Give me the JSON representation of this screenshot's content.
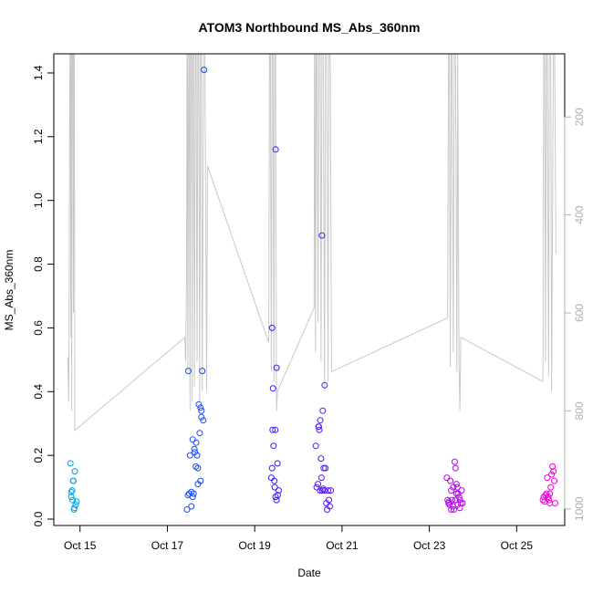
{
  "chart_data": {
    "type": "scatter",
    "title": "ATOM3 Northbound MS_Abs_360nm",
    "xlabel": "Date",
    "ylabel": "MS_Abs_360nm",
    "x_ticks": [
      "Oct 15",
      "Oct 17",
      "Oct 19",
      "Oct 21",
      "Oct 23",
      "Oct 25"
    ],
    "x_tick_days": [
      15,
      17,
      19,
      21,
      23,
      25
    ],
    "xlim": [
      14.4,
      26.1
    ],
    "ylim": [
      -0.02,
      1.46
    ],
    "y_ticks": [
      0.0,
      0.2,
      0.4,
      0.6,
      0.8,
      1.0,
      1.2,
      1.4
    ],
    "y2_ticks": [
      200,
      400,
      600,
      800,
      1000
    ],
    "y2lim": [
      1034,
      71
    ],
    "grid": false,
    "points": [
      {
        "x": 14.78,
        "y": 0.175
      },
      {
        "x": 14.82,
        "y": 0.09
      },
      {
        "x": 14.85,
        "y": 0.12
      },
      {
        "x": 14.8,
        "y": 0.07
      },
      {
        "x": 14.88,
        "y": 0.15
      },
      {
        "x": 14.83,
        "y": 0.06
      },
      {
        "x": 14.9,
        "y": 0.045
      },
      {
        "x": 14.87,
        "y": 0.035
      },
      {
        "x": 14.92,
        "y": 0.055
      },
      {
        "x": 14.8,
        "y": 0.085
      },
      {
        "x": 14.86,
        "y": 0.03
      },
      {
        "x": 14.84,
        "y": 0.12
      },
      {
        "x": 17.45,
        "y": 0.03
      },
      {
        "x": 17.48,
        "y": 0.465
      },
      {
        "x": 17.5,
        "y": 0.08
      },
      {
        "x": 17.52,
        "y": 0.2
      },
      {
        "x": 17.55,
        "y": 0.085
      },
      {
        "x": 17.55,
        "y": 0.04
      },
      {
        "x": 17.58,
        "y": 0.25
      },
      {
        "x": 17.6,
        "y": 0.08
      },
      {
        "x": 17.62,
        "y": 0.22
      },
      {
        "x": 17.63,
        "y": 0.21
      },
      {
        "x": 17.65,
        "y": 0.165
      },
      {
        "x": 17.66,
        "y": 0.24
      },
      {
        "x": 17.68,
        "y": 0.2
      },
      {
        "x": 17.7,
        "y": 0.11
      },
      {
        "x": 17.7,
        "y": 0.16
      },
      {
        "x": 17.72,
        "y": 0.36
      },
      {
        "x": 17.74,
        "y": 0.27
      },
      {
        "x": 17.76,
        "y": 0.35
      },
      {
        "x": 17.76,
        "y": 0.12
      },
      {
        "x": 17.78,
        "y": 0.34
      },
      {
        "x": 17.78,
        "y": 0.32
      },
      {
        "x": 17.8,
        "y": 0.465
      },
      {
        "x": 17.82,
        "y": 0.31
      },
      {
        "x": 17.84,
        "y": 1.41
      },
      {
        "x": 17.47,
        "y": 0.075
      },
      {
        "x": 17.58,
        "y": 0.07
      },
      {
        "x": 19.4,
        "y": 0.6
      },
      {
        "x": 19.42,
        "y": 0.41
      },
      {
        "x": 19.38,
        "y": 0.13
      },
      {
        "x": 19.41,
        "y": 0.28
      },
      {
        "x": 19.43,
        "y": 0.23
      },
      {
        "x": 19.45,
        "y": 0.12
      },
      {
        "x": 19.47,
        "y": 0.28
      },
      {
        "x": 19.48,
        "y": 1.16
      },
      {
        "x": 19.5,
        "y": 0.475
      },
      {
        "x": 19.46,
        "y": 0.1
      },
      {
        "x": 19.48,
        "y": 0.07
      },
      {
        "x": 19.5,
        "y": 0.06
      },
      {
        "x": 19.52,
        "y": 0.175
      },
      {
        "x": 19.55,
        "y": 0.09
      },
      {
        "x": 19.53,
        "y": 0.075
      },
      {
        "x": 19.4,
        "y": 0.16
      },
      {
        "x": 20.4,
        "y": 0.23
      },
      {
        "x": 20.42,
        "y": 0.1
      },
      {
        "x": 20.45,
        "y": 0.11
      },
      {
        "x": 20.47,
        "y": 0.29
      },
      {
        "x": 20.48,
        "y": 0.28
      },
      {
        "x": 20.5,
        "y": 0.31
      },
      {
        "x": 20.52,
        "y": 0.19
      },
      {
        "x": 20.54,
        "y": 0.89
      },
      {
        "x": 20.55,
        "y": 0.09
      },
      {
        "x": 20.56,
        "y": 0.34
      },
      {
        "x": 20.58,
        "y": 0.16
      },
      {
        "x": 20.6,
        "y": 0.09
      },
      {
        "x": 20.6,
        "y": 0.42
      },
      {
        "x": 20.62,
        "y": 0.16
      },
      {
        "x": 20.64,
        "y": 0.05
      },
      {
        "x": 20.66,
        "y": 0.03
      },
      {
        "x": 20.68,
        "y": 0.09
      },
      {
        "x": 20.7,
        "y": 0.06
      },
      {
        "x": 20.72,
        "y": 0.04
      },
      {
        "x": 20.74,
        "y": 0.09
      },
      {
        "x": 20.5,
        "y": 0.09
      },
      {
        "x": 20.53,
        "y": 0.13
      },
      {
        "x": 20.57,
        "y": 0.095
      },
      {
        "x": 20.46,
        "y": 0.29
      },
      {
        "x": 23.4,
        "y": 0.13
      },
      {
        "x": 23.42,
        "y": 0.06
      },
      {
        "x": 23.44,
        "y": 0.05
      },
      {
        "x": 23.46,
        "y": 0.045
      },
      {
        "x": 23.48,
        "y": 0.12
      },
      {
        "x": 23.5,
        "y": 0.09
      },
      {
        "x": 23.52,
        "y": 0.06
      },
      {
        "x": 23.54,
        "y": 0.04
      },
      {
        "x": 23.56,
        "y": 0.03
      },
      {
        "x": 23.58,
        "y": 0.18
      },
      {
        "x": 23.6,
        "y": 0.16
      },
      {
        "x": 23.62,
        "y": 0.11
      },
      {
        "x": 23.64,
        "y": 0.1
      },
      {
        "x": 23.66,
        "y": 0.08
      },
      {
        "x": 23.68,
        "y": 0.07
      },
      {
        "x": 23.7,
        "y": 0.06
      },
      {
        "x": 23.72,
        "y": 0.05
      },
      {
        "x": 23.74,
        "y": 0.09
      },
      {
        "x": 23.76,
        "y": 0.05
      },
      {
        "x": 23.5,
        "y": 0.03
      },
      {
        "x": 23.55,
        "y": 0.1
      },
      {
        "x": 23.6,
        "y": 0.06
      },
      {
        "x": 23.65,
        "y": 0.045
      },
      {
        "x": 23.45,
        "y": 0.055
      },
      {
        "x": 23.7,
        "y": 0.035
      },
      {
        "x": 23.62,
        "y": 0.08
      },
      {
        "x": 25.6,
        "y": 0.06
      },
      {
        "x": 25.62,
        "y": 0.07
      },
      {
        "x": 25.64,
        "y": 0.055
      },
      {
        "x": 25.66,
        "y": 0.075
      },
      {
        "x": 25.68,
        "y": 0.08
      },
      {
        "x": 25.7,
        "y": 0.13
      },
      {
        "x": 25.72,
        "y": 0.07
      },
      {
        "x": 25.74,
        "y": 0.06
      },
      {
        "x": 25.76,
        "y": 0.05
      },
      {
        "x": 25.78,
        "y": 0.1
      },
      {
        "x": 25.8,
        "y": 0.14
      },
      {
        "x": 25.82,
        "y": 0.165
      },
      {
        "x": 25.84,
        "y": 0.15
      },
      {
        "x": 25.86,
        "y": 0.12
      },
      {
        "x": 25.88,
        "y": 0.05
      },
      {
        "x": 25.72,
        "y": 0.07
      },
      {
        "x": 25.76,
        "y": 0.08
      }
    ],
    "point_colors": {
      "start": "#00a6e8",
      "mid": "#2222ff",
      "end": "#ff00d8"
    },
    "altitude_line_color": "#c8c8c8",
    "altitude_series": [
      [
        14.72,
        690
      ],
      [
        14.74,
        780
      ],
      [
        14.75,
        600
      ],
      [
        14.76,
        300
      ],
      [
        14.77,
        71
      ],
      [
        14.78,
        71
      ],
      [
        14.79,
        650
      ],
      [
        14.8,
        71
      ],
      [
        14.81,
        800
      ],
      [
        14.82,
        71
      ],
      [
        14.84,
        71
      ],
      [
        14.85,
        600
      ],
      [
        14.86,
        71
      ],
      [
        14.87,
        71
      ],
      [
        14.88,
        840
      ],
      [
        17.4,
        650
      ],
      [
        17.42,
        700
      ],
      [
        17.44,
        520
      ],
      [
        17.45,
        71
      ],
      [
        17.46,
        71
      ],
      [
        17.47,
        720
      ],
      [
        17.49,
        71
      ],
      [
        17.5,
        71
      ],
      [
        17.52,
        800
      ],
      [
        17.53,
        71
      ],
      [
        17.55,
        71
      ],
      [
        17.57,
        780
      ],
      [
        17.58,
        71
      ],
      [
        17.6,
        71
      ],
      [
        17.62,
        750
      ],
      [
        17.64,
        71
      ],
      [
        17.66,
        71
      ],
      [
        17.68,
        700
      ],
      [
        17.7,
        71
      ],
      [
        17.72,
        71
      ],
      [
        17.74,
        780
      ],
      [
        17.76,
        71
      ],
      [
        17.78,
        71
      ],
      [
        17.8,
        760
      ],
      [
        17.83,
        71
      ],
      [
        17.86,
        71
      ],
      [
        17.9,
        760
      ],
      [
        17.92,
        300
      ],
      [
        19.32,
        660
      ],
      [
        19.34,
        71
      ],
      [
        19.36,
        71
      ],
      [
        19.38,
        720
      ],
      [
        19.4,
        71
      ],
      [
        19.42,
        71
      ],
      [
        19.44,
        740
      ],
      [
        19.46,
        71
      ],
      [
        19.48,
        71
      ],
      [
        19.5,
        800
      ],
      [
        19.52,
        760
      ],
      [
        20.36,
        590
      ],
      [
        20.37,
        71
      ],
      [
        20.38,
        71
      ],
      [
        20.39,
        680
      ],
      [
        20.41,
        71
      ],
      [
        20.43,
        71
      ],
      [
        20.45,
        620
      ],
      [
        20.47,
        71
      ],
      [
        20.5,
        71
      ],
      [
        20.52,
        700
      ],
      [
        20.54,
        71
      ],
      [
        20.57,
        71
      ],
      [
        20.6,
        760
      ],
      [
        20.62,
        71
      ],
      [
        20.65,
        71
      ],
      [
        20.68,
        740
      ],
      [
        20.7,
        71
      ],
      [
        20.73,
        71
      ],
      [
        20.76,
        720
      ],
      [
        23.42,
        610
      ],
      [
        23.44,
        71
      ],
      [
        23.46,
        71
      ],
      [
        23.48,
        710
      ],
      [
        23.5,
        71
      ],
      [
        23.52,
        71
      ],
      [
        23.55,
        680
      ],
      [
        23.57,
        71
      ],
      [
        23.6,
        71
      ],
      [
        23.63,
        720
      ],
      [
        23.65,
        71
      ],
      [
        23.68,
        710
      ],
      [
        23.7,
        800
      ],
      [
        23.72,
        650
      ],
      [
        25.6,
        740
      ],
      [
        25.62,
        71
      ],
      [
        25.64,
        71
      ],
      [
        25.66,
        700
      ],
      [
        25.68,
        71
      ],
      [
        25.7,
        71
      ],
      [
        25.73,
        730
      ],
      [
        25.75,
        71
      ],
      [
        25.78,
        71
      ],
      [
        25.8,
        760
      ],
      [
        25.84,
        71
      ],
      [
        25.87,
        71
      ],
      [
        25.9,
        480
      ]
    ]
  }
}
